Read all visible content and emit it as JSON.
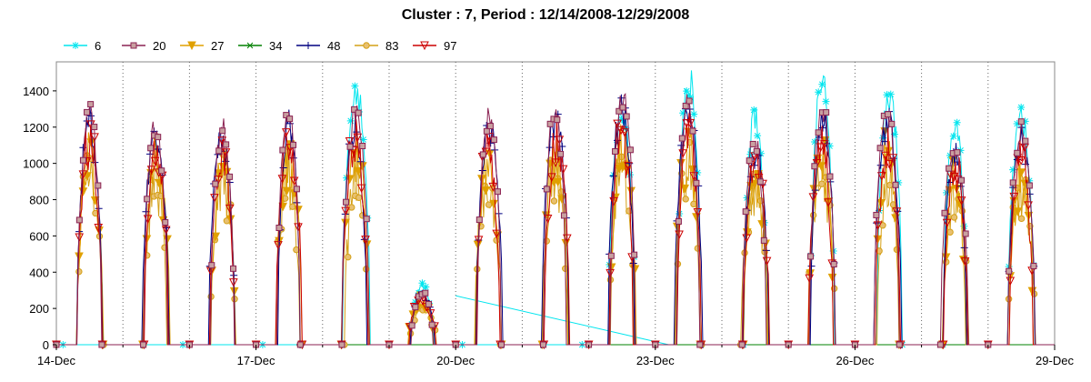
{
  "chart_data": {
    "type": "line",
    "title": "Cluster : 7, Period : 12/14/2008-12/29/2008",
    "xlabel": "",
    "ylabel": "",
    "x_ticks": [
      "14-Dec",
      "17-Dec",
      "20-Dec",
      "23-Dec",
      "26-Dec",
      "29-Dec"
    ],
    "x_range_days": [
      14,
      29
    ],
    "ylim": [
      0,
      1560
    ],
    "y_ticks": [
      0,
      200,
      400,
      600,
      800,
      1000,
      1200,
      1400
    ],
    "legend_position": "top-left",
    "grid": "dotted vertical lines at day boundaries",
    "series": [
      {
        "name": "6",
        "color": "#00e5ee",
        "marker": "star"
      },
      {
        "name": "20",
        "color": "#8b2252",
        "marker": "square"
      },
      {
        "name": "27",
        "color": "#e0a000",
        "marker": "triangle-down"
      },
      {
        "name": "34",
        "color": "#008000",
        "marker": "x"
      },
      {
        "name": "48",
        "color": "#000080",
        "marker": "plus"
      },
      {
        "name": "83",
        "color": "#d4a017",
        "marker": "circle"
      },
      {
        "name": "97",
        "color": "#cc0000",
        "marker": "triangle-down-open"
      }
    ],
    "daily_peaks": {
      "days": [
        "14-Dec",
        "15-Dec",
        "16-Dec",
        "17-Dec",
        "18-Dec",
        "19-Dec",
        "20-Dec",
        "21-Dec",
        "22-Dec",
        "23-Dec",
        "24-Dec",
        "25-Dec",
        "26-Dec",
        "27-Dec",
        "28-Dec"
      ],
      "series_20": [
        1360,
        1290,
        1260,
        1360,
        1300,
        220,
        1320,
        1380,
        1440,
        1400,
        1100,
        1320,
        1370,
        1050,
        1240
      ],
      "series_6": [
        0,
        0,
        0,
        0,
        1480,
        340,
        0,
        0,
        1350,
        1560,
        1330,
        1520,
        1460,
        1300,
        1320
      ]
    },
    "cyan_segment": {
      "from": {
        "day": 20.0,
        "value": 270
      },
      "to": {
        "day": 23.2,
        "value": 0
      }
    }
  }
}
